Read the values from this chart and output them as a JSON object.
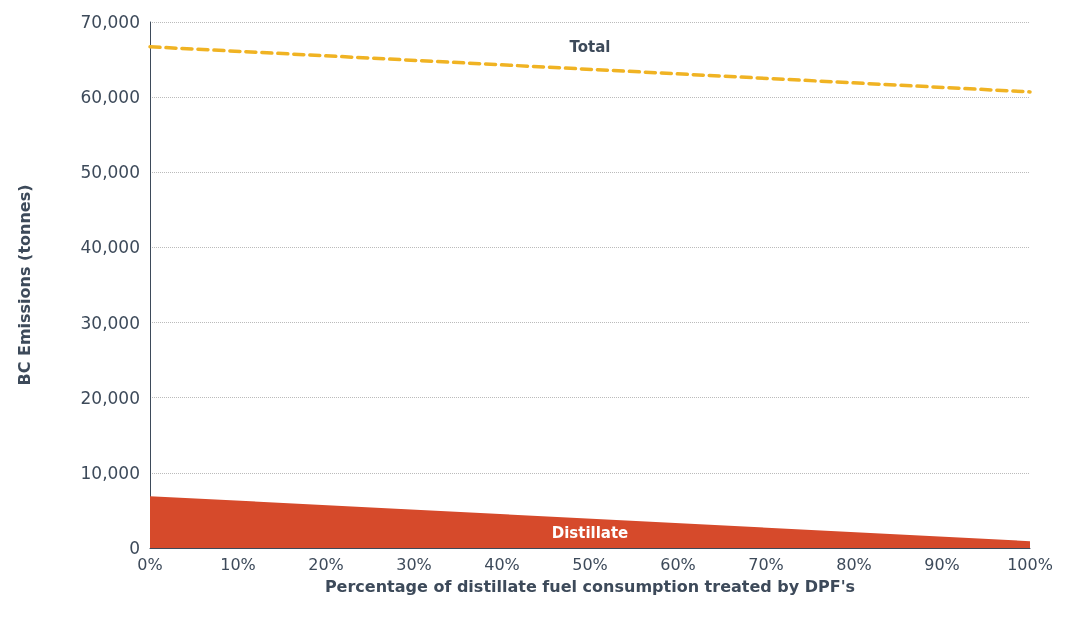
{
  "chart_data": {
    "type": "line",
    "xlabel": "Percentage of distillate fuel consumption treated by DPF's",
    "ylabel": "BC Emissions (tonnes)",
    "x": [
      0,
      100
    ],
    "series": [
      {
        "name": "Total",
        "color": "#f0b323",
        "line_style": "dashed",
        "values": [
          66700,
          60700
        ]
      },
      {
        "name": "Distillate",
        "type": "area",
        "color": "#d64a2b",
        "values": [
          6900,
          900
        ]
      }
    ],
    "xlim": [
      0,
      100
    ],
    "xticks": [
      {
        "value": 0,
        "label": "0%"
      },
      {
        "value": 10,
        "label": "10%"
      },
      {
        "value": 20,
        "label": "20%"
      },
      {
        "value": 30,
        "label": "30%"
      },
      {
        "value": 40,
        "label": "40%"
      },
      {
        "value": 50,
        "label": "50%"
      },
      {
        "value": 60,
        "label": "60%"
      },
      {
        "value": 70,
        "label": "70%"
      },
      {
        "value": 80,
        "label": "80%"
      },
      {
        "value": 90,
        "label": "90%"
      },
      {
        "value": 100,
        "label": "100%"
      }
    ],
    "ylim": [
      0,
      70000
    ],
    "yticks": [
      {
        "value": 0,
        "label": "0"
      },
      {
        "value": 10000,
        "label": "10,000"
      },
      {
        "value": 20000,
        "label": "20,000"
      },
      {
        "value": 30000,
        "label": "30,000"
      },
      {
        "value": 40000,
        "label": "40,000"
      },
      {
        "value": 50000,
        "label": "50,000"
      },
      {
        "value": 60000,
        "label": "60,000"
      },
      {
        "value": 70000,
        "label": "70,000"
      }
    ],
    "grid": "y",
    "legend": false,
    "marker": "none"
  }
}
